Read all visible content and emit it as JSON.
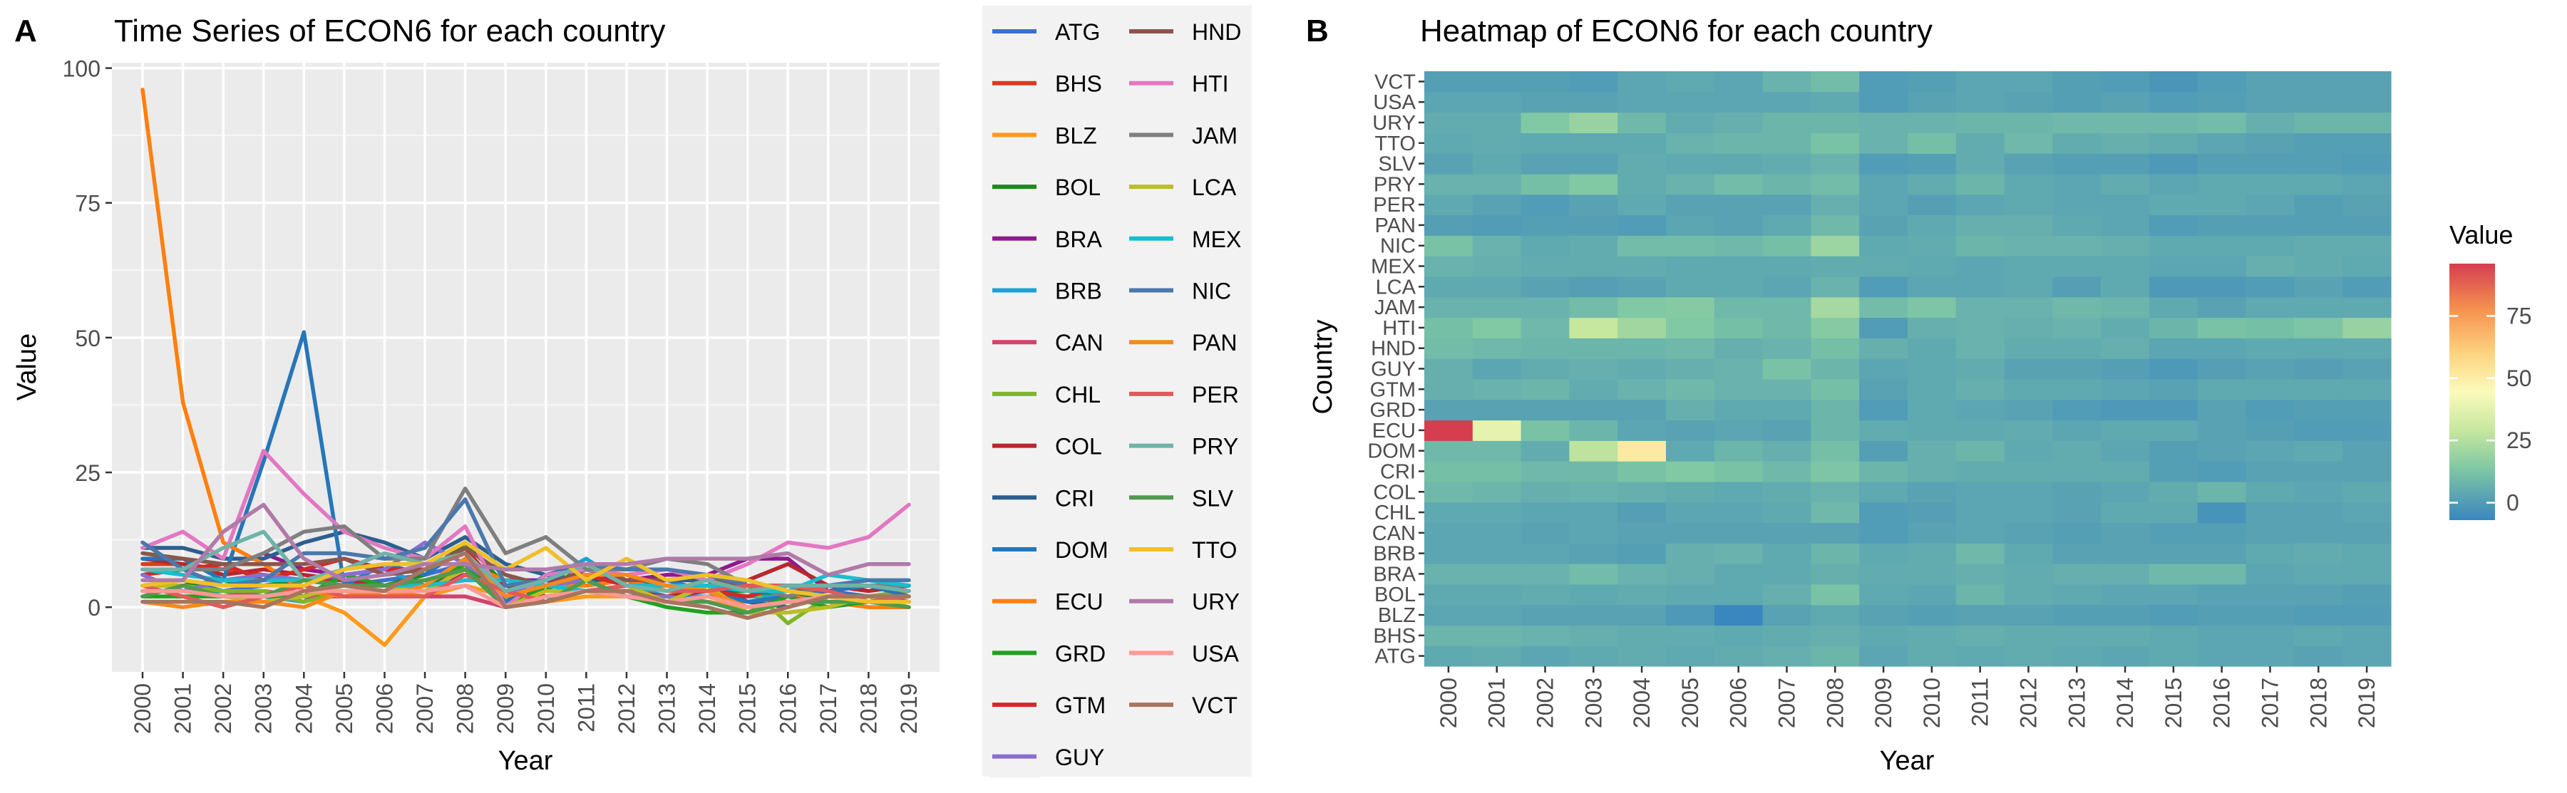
{
  "panels": {
    "a": {
      "letter": "A",
      "title": "Time Series of ECON6 for each country"
    },
    "b": {
      "letter": "B",
      "title": "Heatmap of ECON6 for each country",
      "legend_title": "Value"
    }
  },
  "chart_data": [
    {
      "type": "line",
      "title": "Time Series of ECON6 for each country",
      "xlabel": "Year",
      "ylabel": "Value",
      "ylim": [
        -12,
        101
      ],
      "yticks": [
        0,
        25,
        50,
        75,
        100
      ],
      "grid": true,
      "legend_position": "right",
      "x": [
        "2000",
        "2001",
        "2002",
        "2003",
        "2004",
        "2005",
        "2006",
        "2007",
        "2008",
        "2009",
        "2010",
        "2011",
        "2012",
        "2013",
        "2014",
        "2015",
        "2016",
        "2017",
        "2018",
        "2019"
      ],
      "series": [
        {
          "name": "ATG",
          "color": "#3b6fd1",
          "values": [
            4,
            5,
            3,
            4,
            5,
            4,
            5,
            6,
            8,
            3,
            5,
            4,
            5,
            4,
            3,
            4,
            3,
            3,
            2,
            3
          ]
        },
        {
          "name": "BHS",
          "color": "#d93b1e",
          "values": [
            8,
            8,
            7,
            6,
            5,
            5,
            4,
            5,
            6,
            4,
            5,
            6,
            5,
            5,
            5,
            4,
            3,
            3,
            4,
            3
          ]
        },
        {
          "name": "BLZ",
          "color": "#ff9a1a",
          "values": [
            3,
            3,
            2,
            2,
            2,
            -1,
            -7,
            2,
            4,
            2,
            1,
            2,
            2,
            1,
            1,
            0,
            1,
            1,
            0,
            0
          ]
        },
        {
          "name": "BOL",
          "color": "#1b8c1b",
          "values": [
            4,
            4,
            5,
            4,
            5,
            4,
            4,
            6,
            12,
            4,
            3,
            8,
            5,
            4,
            3,
            3,
            2,
            2,
            2,
            1
          ]
        },
        {
          "name": "BRA",
          "color": "#8e1a8e",
          "values": [
            7,
            7,
            7,
            10,
            7,
            6,
            4,
            4,
            6,
            5,
            5,
            6,
            5,
            6,
            6,
            9,
            9,
            3,
            4,
            4
          ]
        },
        {
          "name": "BRB",
          "color": "#1ca0d8",
          "values": [
            3,
            3,
            3,
            2,
            1,
            6,
            7,
            4,
            8,
            4,
            5,
            9,
            4,
            2,
            2,
            2,
            2,
            4,
            5,
            4
          ]
        },
        {
          "name": "CAN",
          "color": "#d1436c",
          "values": [
            3,
            3,
            2,
            3,
            2,
            2,
            2,
            2,
            2,
            0,
            2,
            3,
            2,
            1,
            2,
            1,
            1,
            2,
            2,
            2
          ]
        },
        {
          "name": "CHL",
          "color": "#7fb52a",
          "values": [
            4,
            4,
            3,
            3,
            1,
            3,
            3,
            4,
            9,
            0,
            1,
            3,
            3,
            2,
            4,
            4,
            -3,
            2,
            2,
            3
          ]
        },
        {
          "name": "COL",
          "color": "#b7282e",
          "values": [
            9,
            8,
            6,
            7,
            6,
            5,
            4,
            5,
            7,
            4,
            2,
            3,
            3,
            2,
            3,
            5,
            8,
            4,
            3,
            4
          ]
        },
        {
          "name": "CRI",
          "color": "#2d5f8e",
          "values": [
            11,
            11,
            9,
            9,
            12,
            14,
            12,
            9,
            13,
            8,
            6,
            5,
            5,
            5,
            5,
            1,
            0,
            2,
            2,
            2
          ]
        },
        {
          "name": "DOM",
          "color": "#2676b8",
          "values": [
            9,
            9,
            5,
            27,
            51,
            4,
            8,
            6,
            11,
            1,
            6,
            8,
            4,
            5,
            3,
            1,
            2,
            3,
            4,
            2
          ]
        },
        {
          "name": "ECU",
          "color": "#ff7f0e",
          "values": [
            96,
            38,
            12,
            8,
            3,
            2,
            3,
            2,
            8,
            5,
            4,
            4,
            5,
            3,
            4,
            4,
            2,
            1,
            0,
            0
          ]
        },
        {
          "name": "GRD",
          "color": "#23a023",
          "values": [
            2,
            2,
            2,
            2,
            2,
            6,
            4,
            4,
            8,
            0,
            4,
            3,
            2,
            0,
            -1,
            -1,
            2,
            0,
            1,
            1
          ]
        },
        {
          "name": "GTM",
          "color": "#d62728",
          "values": [
            6,
            7,
            8,
            5,
            7,
            9,
            7,
            7,
            11,
            2,
            4,
            6,
            4,
            4,
            3,
            2,
            4,
            4,
            4,
            4
          ]
        },
        {
          "name": "GUY",
          "color": "#8a6ed1",
          "values": [
            6,
            3,
            5,
            6,
            5,
            6,
            7,
            12,
            8,
            3,
            4,
            5,
            2,
            2,
            1,
            -1,
            1,
            2,
            1,
            2
          ]
        },
        {
          "name": "HND",
          "color": "#8c564b",
          "values": [
            10,
            9,
            8,
            8,
            8,
            9,
            6,
            7,
            11,
            6,
            4,
            7,
            5,
            5,
            6,
            3,
            3,
            4,
            4,
            4
          ]
        },
        {
          "name": "HTI",
          "color": "#e377c2",
          "values": [
            11,
            14,
            9,
            29,
            21,
            14,
            11,
            9,
            15,
            0,
            6,
            7,
            6,
            7,
            5,
            8,
            12,
            11,
            13,
            19
          ]
        },
        {
          "name": "JAM",
          "color": "#7f7f7f",
          "values": [
            7,
            7,
            7,
            10,
            14,
            15,
            9,
            9,
            22,
            10,
            13,
            7,
            7,
            9,
            8,
            4,
            2,
            4,
            4,
            4
          ]
        },
        {
          "name": "LCA",
          "color": "#bcbd22",
          "values": [
            4,
            4,
            2,
            1,
            2,
            4,
            4,
            3,
            7,
            0,
            3,
            3,
            4,
            1,
            4,
            -1,
            -1,
            0,
            2,
            0
          ]
        },
        {
          "name": "MEX",
          "color": "#17becf",
          "values": [
            7,
            6,
            5,
            5,
            5,
            4,
            4,
            4,
            5,
            5,
            4,
            3,
            4,
            4,
            4,
            3,
            3,
            6,
            5,
            4
          ]
        },
        {
          "name": "NIC",
          "color": "#4a78ad",
          "values": [
            12,
            7,
            4,
            5,
            10,
            10,
            9,
            11,
            20,
            4,
            5,
            8,
            7,
            7,
            6,
            4,
            4,
            4,
            5,
            5
          ]
        },
        {
          "name": "PAN",
          "color": "#f58a1c",
          "values": [
            1,
            0,
            1,
            1,
            0,
            3,
            2,
            4,
            9,
            2,
            4,
            6,
            6,
            4,
            3,
            0,
            1,
            1,
            1,
            1
          ]
        },
        {
          "name": "PER",
          "color": "#e05a5a",
          "values": [
            4,
            2,
            0,
            2,
            4,
            2,
            2,
            2,
            6,
            3,
            1,
            3,
            4,
            3,
            3,
            4,
            4,
            3,
            1,
            2
          ]
        },
        {
          "name": "PRY",
          "color": "#6fb3a8",
          "values": [
            7,
            7,
            11,
            14,
            5,
            7,
            10,
            8,
            10,
            3,
            5,
            8,
            4,
            3,
            5,
            3,
            4,
            4,
            4,
            3
          ]
        },
        {
          "name": "SLV",
          "color": "#4f9a4f",
          "values": [
            2,
            4,
            2,
            2,
            5,
            4,
            4,
            5,
            7,
            0,
            1,
            5,
            2,
            1,
            1,
            -1,
            1,
            1,
            1,
            0
          ]
        },
        {
          "name": "TTO",
          "color": "#f0c02a",
          "values": [
            4,
            5,
            4,
            4,
            4,
            7,
            8,
            8,
            12,
            7,
            11,
            5,
            9,
            5,
            6,
            5,
            3,
            2,
            1,
            1
          ]
        },
        {
          "name": "URY",
          "color": "#b07aa8",
          "values": [
            5,
            5,
            14,
            19,
            9,
            5,
            6,
            8,
            8,
            7,
            7,
            8,
            8,
            9,
            9,
            9,
            10,
            6,
            8,
            8
          ]
        },
        {
          "name": "USA",
          "color": "#ff9896",
          "values": [
            3,
            3,
            2,
            2,
            3,
            3,
            3,
            3,
            4,
            0,
            2,
            3,
            2,
            1,
            2,
            0,
            1,
            2,
            2,
            2
          ]
        },
        {
          "name": "VCT",
          "color": "#a87460",
          "values": [
            1,
            1,
            1,
            0,
            3,
            4,
            3,
            7,
            10,
            0,
            1,
            3,
            3,
            1,
            0,
            -2,
            0,
            2,
            2,
            2
          ]
        }
      ]
    },
    {
      "type": "heatmap",
      "title": "Heatmap of ECON6 for each country",
      "xlabel": "Year",
      "ylabel": "Country",
      "legend_title": "Value",
      "legend_ticks": [
        0,
        25,
        50,
        75
      ],
      "color_range": [
        -7,
        96
      ],
      "legend_position": "right",
      "x": [
        "2000",
        "2001",
        "2002",
        "2003",
        "2004",
        "2005",
        "2006",
        "2007",
        "2008",
        "2009",
        "2010",
        "2011",
        "2012",
        "2013",
        "2014",
        "2015",
        "2016",
        "2017",
        "2018",
        "2019"
      ],
      "y": [
        "ATG",
        "BHS",
        "BLZ",
        "BOL",
        "BRA",
        "BRB",
        "CAN",
        "CHL",
        "COL",
        "CRI",
        "DOM",
        "ECU",
        "GRD",
        "GTM",
        "GUY",
        "HND",
        "HTI",
        "JAM",
        "LCA",
        "MEX",
        "NIC",
        "PAN",
        "PER",
        "PRY",
        "SLV",
        "TTO",
        "URY",
        "USA",
        "VCT"
      ]
    }
  ]
}
